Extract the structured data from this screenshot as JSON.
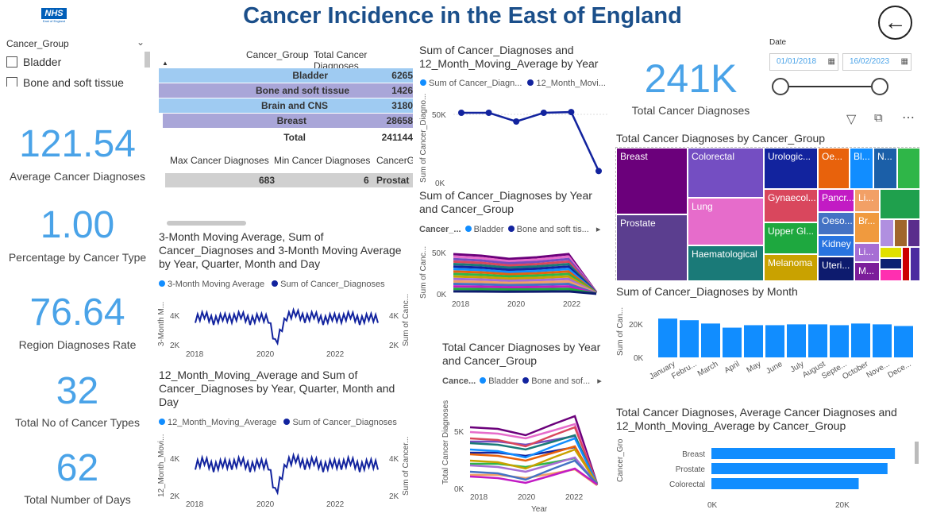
{
  "header": {
    "title": "Cancer Incidence in the East of England",
    "logo_text": "NHS",
    "logo_sub": "East of England"
  },
  "slicer": {
    "title": "Cancer_Group",
    "items": [
      "Bladder",
      "Bone and soft tissue"
    ]
  },
  "kpis": [
    {
      "value": "121.54",
      "label": "Average Cancer Diagnoses"
    },
    {
      "value": "1.00",
      "label": "Percentage by Cancer Type"
    },
    {
      "value": "76.64",
      "label": "Region Diagnoses Rate"
    },
    {
      "value": "32",
      "label": "Total No of Cancer Types"
    },
    {
      "value": "62",
      "label": "Total Number of Days"
    }
  ],
  "table": {
    "headers": [
      "Cancer_Group",
      "Total Cancer Diagnoses"
    ],
    "rows": [
      {
        "name": "Bladder",
        "value": "6265",
        "color": "#9fcbf2"
      },
      {
        "name": "Bone and soft tissue",
        "value": "1426",
        "color": "#a9a6d8"
      },
      {
        "name": "Brain and CNS",
        "value": "3180",
        "color": "#9fcbf2"
      },
      {
        "name": "Breast",
        "value": "28658",
        "color": "#a9a6d8"
      }
    ],
    "total_label": "Total",
    "total_value": "241144"
  },
  "table2": {
    "headers": [
      "Max Cancer Diagnoses",
      "Min Cancer Diagnoses",
      "CancerG"
    ],
    "row": [
      "683",
      "6",
      "Prostat"
    ]
  },
  "big_kpi": {
    "value": "241K",
    "label": "Total Cancer Diagnoses"
  },
  "date_slicer": {
    "label": "Date",
    "from": "01/01/2018",
    "to": "16/02/2023"
  },
  "chart_top_mid": {
    "title": "Sum of Cancer_Diagnoses and 12_Month_Moving_Average by Year",
    "legend": [
      "Sum of Cancer_Diagn...",
      "12_Month_Movi..."
    ],
    "ylabel": "Sum of Cancer_Diagno...",
    "yticks": [
      "50K",
      "0K"
    ]
  },
  "chart_mid_mid": {
    "title": "Sum of Cancer_Diagnoses by Year and Cancer_Group",
    "legend_title": "Cancer_...",
    "legend": [
      "Bladder",
      "Bone and soft tis..."
    ],
    "ylabel": "Sum of Canc...",
    "yticks": [
      "50K",
      "0K"
    ],
    "xticks": [
      "2018",
      "2020",
      "2022"
    ]
  },
  "chart_bot_mid": {
    "title": "Total Cancer Diagnoses by Year and Cancer_Group",
    "legend_title": "Cance...",
    "legend": [
      "Bladder",
      "Bone and sof..."
    ],
    "ylabel": "Total Cancer Diagnoses",
    "xlabel": "Year",
    "yticks": [
      "5K",
      "0K"
    ],
    "xticks": [
      "2018",
      "2020",
      "2022"
    ]
  },
  "chart_left1": {
    "title": "3-Month Moving Average, Sum of Cancer_Diagnoses and 3-Month Moving Average by Year, Quarter, Month and Day",
    "legend": [
      "3-Month Moving Average",
      "Sum of Cancer_Diagnoses"
    ],
    "ylabel_l": "3-Month M...",
    "ylabel_r": "Sum of Canc...",
    "yticks": [
      "4K",
      "2K"
    ],
    "xticks": [
      "2018",
      "2020",
      "2022"
    ]
  },
  "chart_left2": {
    "title": "12_Month_Moving_Average and Sum of Cancer_Diagnoses by Year, Quarter, Month and Day",
    "legend": [
      "12_Month_Moving_Average",
      "Sum of Cancer_Diagnoses"
    ],
    "ylabel_l": "12_Month_Movi...",
    "ylabel_r": "Sum of Cancer...",
    "yticks": [
      "4K",
      "2K"
    ],
    "xticks": [
      "2018",
      "2020",
      "2022"
    ]
  },
  "treemap": {
    "title": "Total Cancer Diagnoses by Cancer_Group",
    "cells": [
      "Breast",
      "Prostate",
      "Colorectal",
      "Lung",
      "Haematological",
      "Urologic...",
      "Oe...",
      "Bl...",
      "N...",
      "Gynaecol...",
      "Pancr...",
      "Li...",
      "Upper Gl...",
      "Oeso...",
      "Br...",
      "Kidney",
      "Li...",
      "Melanoma",
      "Uteri...",
      "M..."
    ]
  },
  "chart_month": {
    "title": "Sum of Cancer_Diagnoses by Month",
    "ylabel": "Sum of Can...",
    "yticks": [
      "20K",
      "0K"
    ]
  },
  "chart_hbar": {
    "title": "Total Cancer Diagnoses, Average Cancer Diagnoses and 12_Month_Moving_Average by Cancer_Group",
    "ylabel": "Cancer_Group",
    "xticks": [
      "0K",
      "20K"
    ]
  },
  "colors": {
    "accent": "#4aa3e8",
    "title": "#1b4f8a",
    "navy": "#12239e",
    "bar": "#118dff"
  },
  "chart_data": [
    {
      "type": "line",
      "title": "Sum of Cancer_Diagnoses and 12_Month_Moving_Average by Year",
      "x": [
        2018,
        2019,
        2020,
        2021,
        2022,
        2023
      ],
      "series": [
        {
          "name": "12_Month_Movi...",
          "values": [
            48000,
            48000,
            42000,
            48000,
            48500,
            8000
          ]
        }
      ],
      "ylim": [
        0,
        60000
      ]
    },
    {
      "type": "bar",
      "title": "Sum of Cancer_Diagnoses by Month",
      "categories": [
        "January",
        "Febru...",
        "March",
        "April",
        "May",
        "June",
        "July",
        "August",
        "Septe...",
        "October",
        "Nove...",
        "Dece..."
      ],
      "values": [
        23500,
        22500,
        20500,
        18000,
        19500,
        19500,
        20000,
        20000,
        19500,
        20500,
        20000,
        19000
      ],
      "ylim": [
        0,
        25000
      ]
    },
    {
      "type": "bar",
      "title": "Total Cancer Diagnoses, Average Cancer Diagnoses and 12_Month_Moving_Average by Cancer_Group",
      "categories": [
        "Breast",
        "Prostate",
        "Colorectal"
      ],
      "values": [
        28658,
        27500,
        23000
      ],
      "xlim": [
        0,
        31000
      ]
    },
    {
      "type": "line",
      "title": "3-Month Moving Average, Sum of Cancer_Diagnoses and 3-Month Moving Average by Year, Quarter, Month and Day",
      "x": [
        2018.0,
        2018.25,
        2018.5,
        2018.75,
        2019.0,
        2019.25,
        2019.5,
        2019.75,
        2020.0,
        2020.2,
        2020.35,
        2020.5,
        2020.75,
        2021.0,
        2021.25,
        2021.5,
        2021.75,
        2022.0,
        2022.25,
        2022.5,
        2022.75,
        2023.0
      ],
      "series": [
        {
          "name": "Sum of Cancer_Diagnoses",
          "values": [
            4000,
            4200,
            3900,
            4100,
            4000,
            4200,
            3900,
            4100,
            4000,
            2800,
            3500,
            4100,
            4300,
            4000,
            4200,
            3900,
            4100,
            4000,
            4200,
            3900,
            4100,
            4000
          ]
        }
      ],
      "ylim": [
        2000,
        5000
      ]
    }
  ]
}
